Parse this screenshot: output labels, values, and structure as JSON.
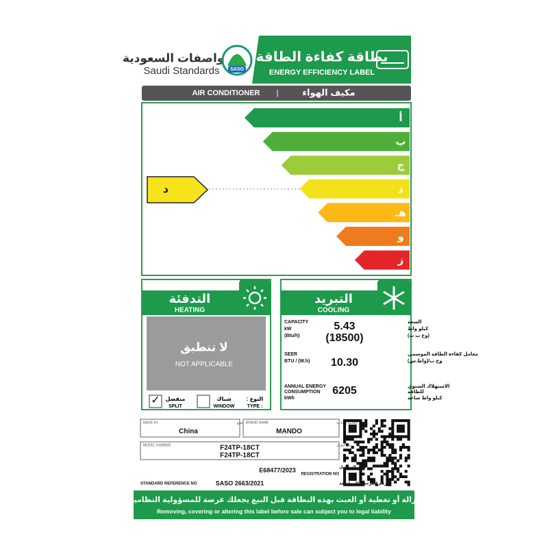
{
  "header": {
    "org_ar": "المواصفات السعودية",
    "org_en": "Saudi Standards",
    "logo": "SASO",
    "label_ar": "بطاقة كفاءة الطاقة",
    "label_en": "ENERGY EFFICIENCY LABEL"
  },
  "product": {
    "en": "AIR CONDITIONER",
    "separator": "|",
    "ar": "مكيف الهواء"
  },
  "rating": {
    "classes": [
      "أ",
      "ب",
      "ج",
      "د",
      "هـ",
      "و",
      "ز"
    ],
    "current": "د"
  },
  "heating": {
    "title_ar": "التدفئة",
    "title_en": "HEATING",
    "status_ar": "لا تنطبق",
    "status_en": "NOT APPLICABLE"
  },
  "cooling": {
    "title_ar": "التبريد",
    "title_en": "COOLING",
    "capacity": {
      "label_en": "CAPACITY",
      "unit_en": "kW",
      "unit2_en": "(Btu/h)",
      "label_ar": "السعة",
      "unit_ar": "كيلو واط",
      "unit2_ar": "(وح ب ت)",
      "value": "5.43",
      "value2": "(18500)"
    },
    "seer": {
      "label_en": "SEER",
      "unit_en": "BTU / (W.h)",
      "label_ar": "معامل كفاءة الطاقة الموسمي",
      "unit_ar": "وح ب/(واط.س)",
      "value": "10.30"
    },
    "annual": {
      "label_en": "ANNUAL ENERGY",
      "label2_en": "CONSUMPTION",
      "unit_en": "kWh",
      "label_ar": "الاستهلاك السنوي",
      "label2_ar": "للطاقة",
      "unit_ar": "كيلو واط ساعة",
      "value": "6205"
    }
  },
  "type": {
    "split_ar": "منفصل",
    "split_en": "SPLIT",
    "split_mark": "✓",
    "window_ar": "شباك",
    "window_en": "WINDOW",
    "label_ar": "النوع :",
    "label_en": "TYPE :"
  },
  "info": {
    "made_in_en": "MADE IN",
    "made_in_ar": "بلد الصنع",
    "made_in": "China",
    "brand_en": "BRAND NAME",
    "brand_ar": "العلامة التجارية",
    "brand": "MANDO",
    "model_en": "MODEL NUMBER",
    "model_ar": "رقم الطراز",
    "model": [
      "F24TP-18CT",
      "F24TP-18CT"
    ],
    "registration": "E68477/2023",
    "registration_ar": "رقم التسجيل",
    "registration_en": "REGISTRATION NO",
    "standard_en": "STANDARD REFERENCE NO",
    "standard": "SASO 2663/2021",
    "standard_ar": "الرقم المرجعي للمواصفة"
  },
  "warning": {
    "ar": "إزالة أو تغطية أو العبث بهذه البطاقة قبل البيع يجعلك عرضة للمسؤولية النظامية",
    "en": "Removing, covering or altering this label before sale can subject you to legal liability"
  }
}
